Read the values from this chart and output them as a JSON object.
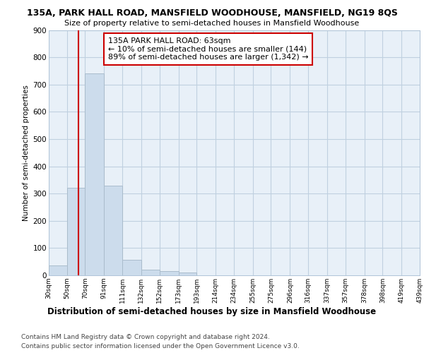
{
  "title": "135A, PARK HALL ROAD, MANSFIELD WOODHOUSE, MANSFIELD, NG19 8QS",
  "subtitle": "Size of property relative to semi-detached houses in Mansfield Woodhouse",
  "xlabel": "Distribution of semi-detached houses by size in Mansfield Woodhouse",
  "ylabel": "Number of semi-detached properties",
  "footnote1": "Contains HM Land Registry data © Crown copyright and database right 2024.",
  "footnote2": "Contains public sector information licensed under the Open Government Licence v3.0.",
  "bins": [
    30,
    50,
    70,
    91,
    111,
    132,
    152,
    173,
    193,
    214,
    234,
    255,
    275,
    296,
    316,
    337,
    357,
    378,
    398,
    419,
    439
  ],
  "bar_heights": [
    35,
    320,
    740,
    330,
    57,
    20,
    15,
    10,
    0,
    0,
    0,
    0,
    0,
    0,
    0,
    0,
    0,
    0,
    0,
    0
  ],
  "bar_color": "#ccdcec",
  "bar_edgecolor": "#aabccc",
  "grid_color": "#c0d0e0",
  "bg_color": "#e8f0f8",
  "property_line_x": 63,
  "annotation_line1": "135A PARK HALL ROAD: 63sqm",
  "annotation_line2": "← 10% of semi-detached houses are smaller (144)",
  "annotation_line3": "89% of semi-detached houses are larger (1,342) →",
  "annotation_box_color": "#cc0000",
  "ylim": [
    0,
    900
  ],
  "tick_labels": [
    "30sqm",
    "50sqm",
    "70sqm",
    "91sqm",
    "111sqm",
    "132sqm",
    "152sqm",
    "173sqm",
    "193sqm",
    "214sqm",
    "234sqm",
    "255sqm",
    "275sqm",
    "296sqm",
    "316sqm",
    "337sqm",
    "357sqm",
    "378sqm",
    "398sqm",
    "419sqm",
    "439sqm"
  ]
}
